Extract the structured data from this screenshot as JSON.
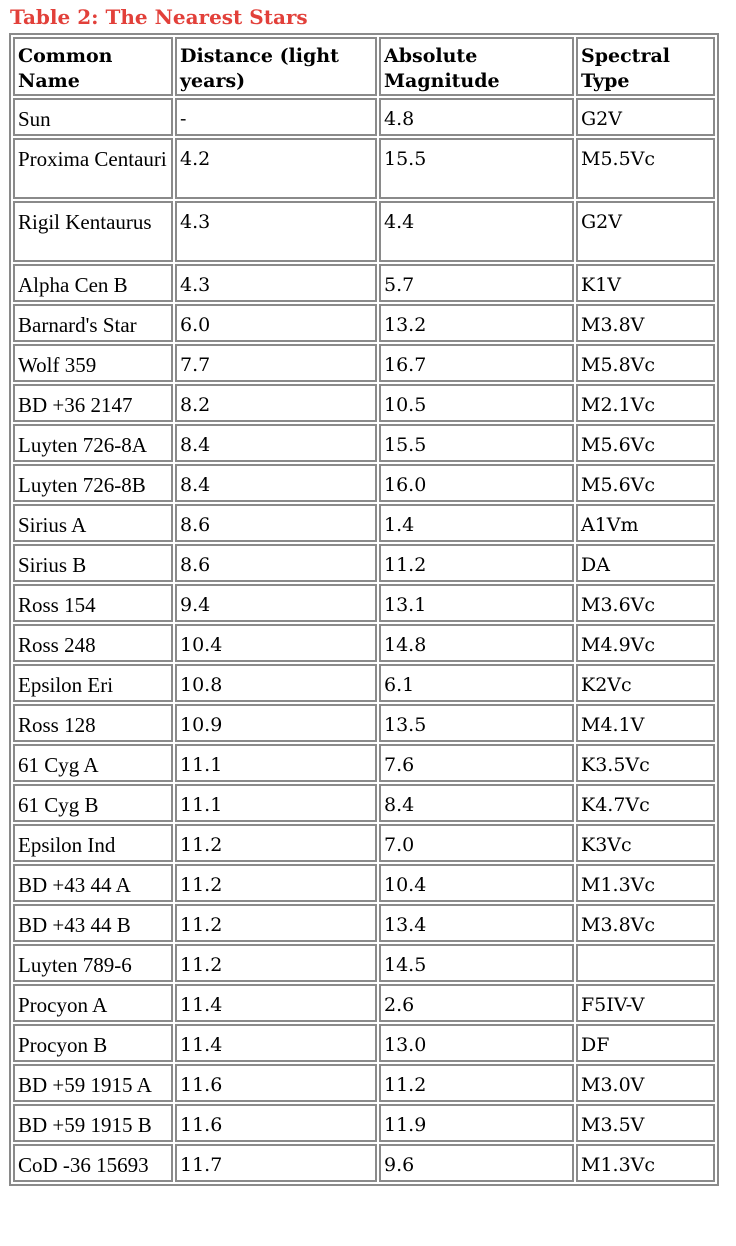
{
  "caption": "Table 2:  The Nearest Stars",
  "headers": {
    "name": "Common Name",
    "distance": "Distance (light years)",
    "magnitude": "Absolute Magnitude",
    "spectral": "Spectral Type"
  },
  "rows": [
    {
      "name": "Sun",
      "distance": "-",
      "magnitude": "4.8",
      "spectral": "G2V"
    },
    {
      "name": "Proxima Centauri",
      "distance": "4.2",
      "magnitude": "15.5",
      "spectral": "M5.5Vc"
    },
    {
      "name": "Rigil Kentaurus",
      "distance": "4.3",
      "magnitude": "4.4",
      "spectral": "G2V"
    },
    {
      "name": "Alpha Cen B",
      "distance": "4.3",
      "magnitude": "5.7",
      "spectral": "K1V"
    },
    {
      "name": "Barnard's Star",
      "distance": "6.0",
      "magnitude": "13.2",
      "spectral": "M3.8V"
    },
    {
      "name": "Wolf 359",
      "distance": "7.7",
      "magnitude": "16.7",
      "spectral": "M5.8Vc"
    },
    {
      "name": "BD +36 2147",
      "distance": "8.2",
      "magnitude": "10.5",
      "spectral": "M2.1Vc"
    },
    {
      "name": "Luyten 726-8A",
      "distance": "8.4",
      "magnitude": "15.5",
      "spectral": "M5.6Vc"
    },
    {
      "name": "Luyten 726-8B",
      "distance": "8.4",
      "magnitude": "16.0",
      "spectral": "M5.6Vc"
    },
    {
      "name": "Sirius A",
      "distance": "8.6",
      "magnitude": "1.4",
      "spectral": "A1Vm"
    },
    {
      "name": "Sirius B",
      "distance": "8.6",
      "magnitude": "11.2",
      "spectral": "DA"
    },
    {
      "name": "Ross 154",
      "distance": "9.4",
      "magnitude": "13.1",
      "spectral": "M3.6Vc"
    },
    {
      "name": "Ross 248",
      "distance": "10.4",
      "magnitude": "14.8",
      "spectral": "M4.9Vc"
    },
    {
      "name": "Epsilon Eri",
      "distance": "10.8",
      "magnitude": "6.1",
      "spectral": "K2Vc"
    },
    {
      "name": "Ross 128",
      "distance": "10.9",
      "magnitude": "13.5",
      "spectral": "M4.1V"
    },
    {
      "name": "61 Cyg A",
      "distance": "11.1",
      "magnitude": "7.6",
      "spectral": "K3.5Vc"
    },
    {
      "name": "61 Cyg B",
      "distance": "11.1",
      "magnitude": "8.4",
      "spectral": "K4.7Vc"
    },
    {
      "name": "Epsilon Ind",
      "distance": "11.2",
      "magnitude": "7.0",
      "spectral": "K3Vc"
    },
    {
      "name": "BD +43 44 A",
      "distance": "11.2",
      "magnitude": "10.4",
      "spectral": "M1.3Vc"
    },
    {
      "name": "BD +43 44 B",
      "distance": "11.2",
      "magnitude": "13.4",
      "spectral": "M3.8Vc"
    },
    {
      "name": "Luyten 789-6",
      "distance": "11.2",
      "magnitude": "14.5",
      "spectral": ""
    },
    {
      "name": "Procyon A",
      "distance": "11.4",
      "magnitude": "2.6",
      "spectral": "F5IV-V"
    },
    {
      "name": "Procyon B",
      "distance": "11.4",
      "magnitude": "13.0",
      "spectral": "DF"
    },
    {
      "name": "BD +59 1915 A",
      "distance": "11.6",
      "magnitude": "11.2",
      "spectral": "M3.0V"
    },
    {
      "name": "BD +59 1915 B",
      "distance": "11.6",
      "magnitude": "11.9",
      "spectral": "M3.5V"
    },
    {
      "name": "CoD -36 15693",
      "distance": "11.7",
      "magnitude": "9.6",
      "spectral": "M1.3Vc"
    }
  ]
}
